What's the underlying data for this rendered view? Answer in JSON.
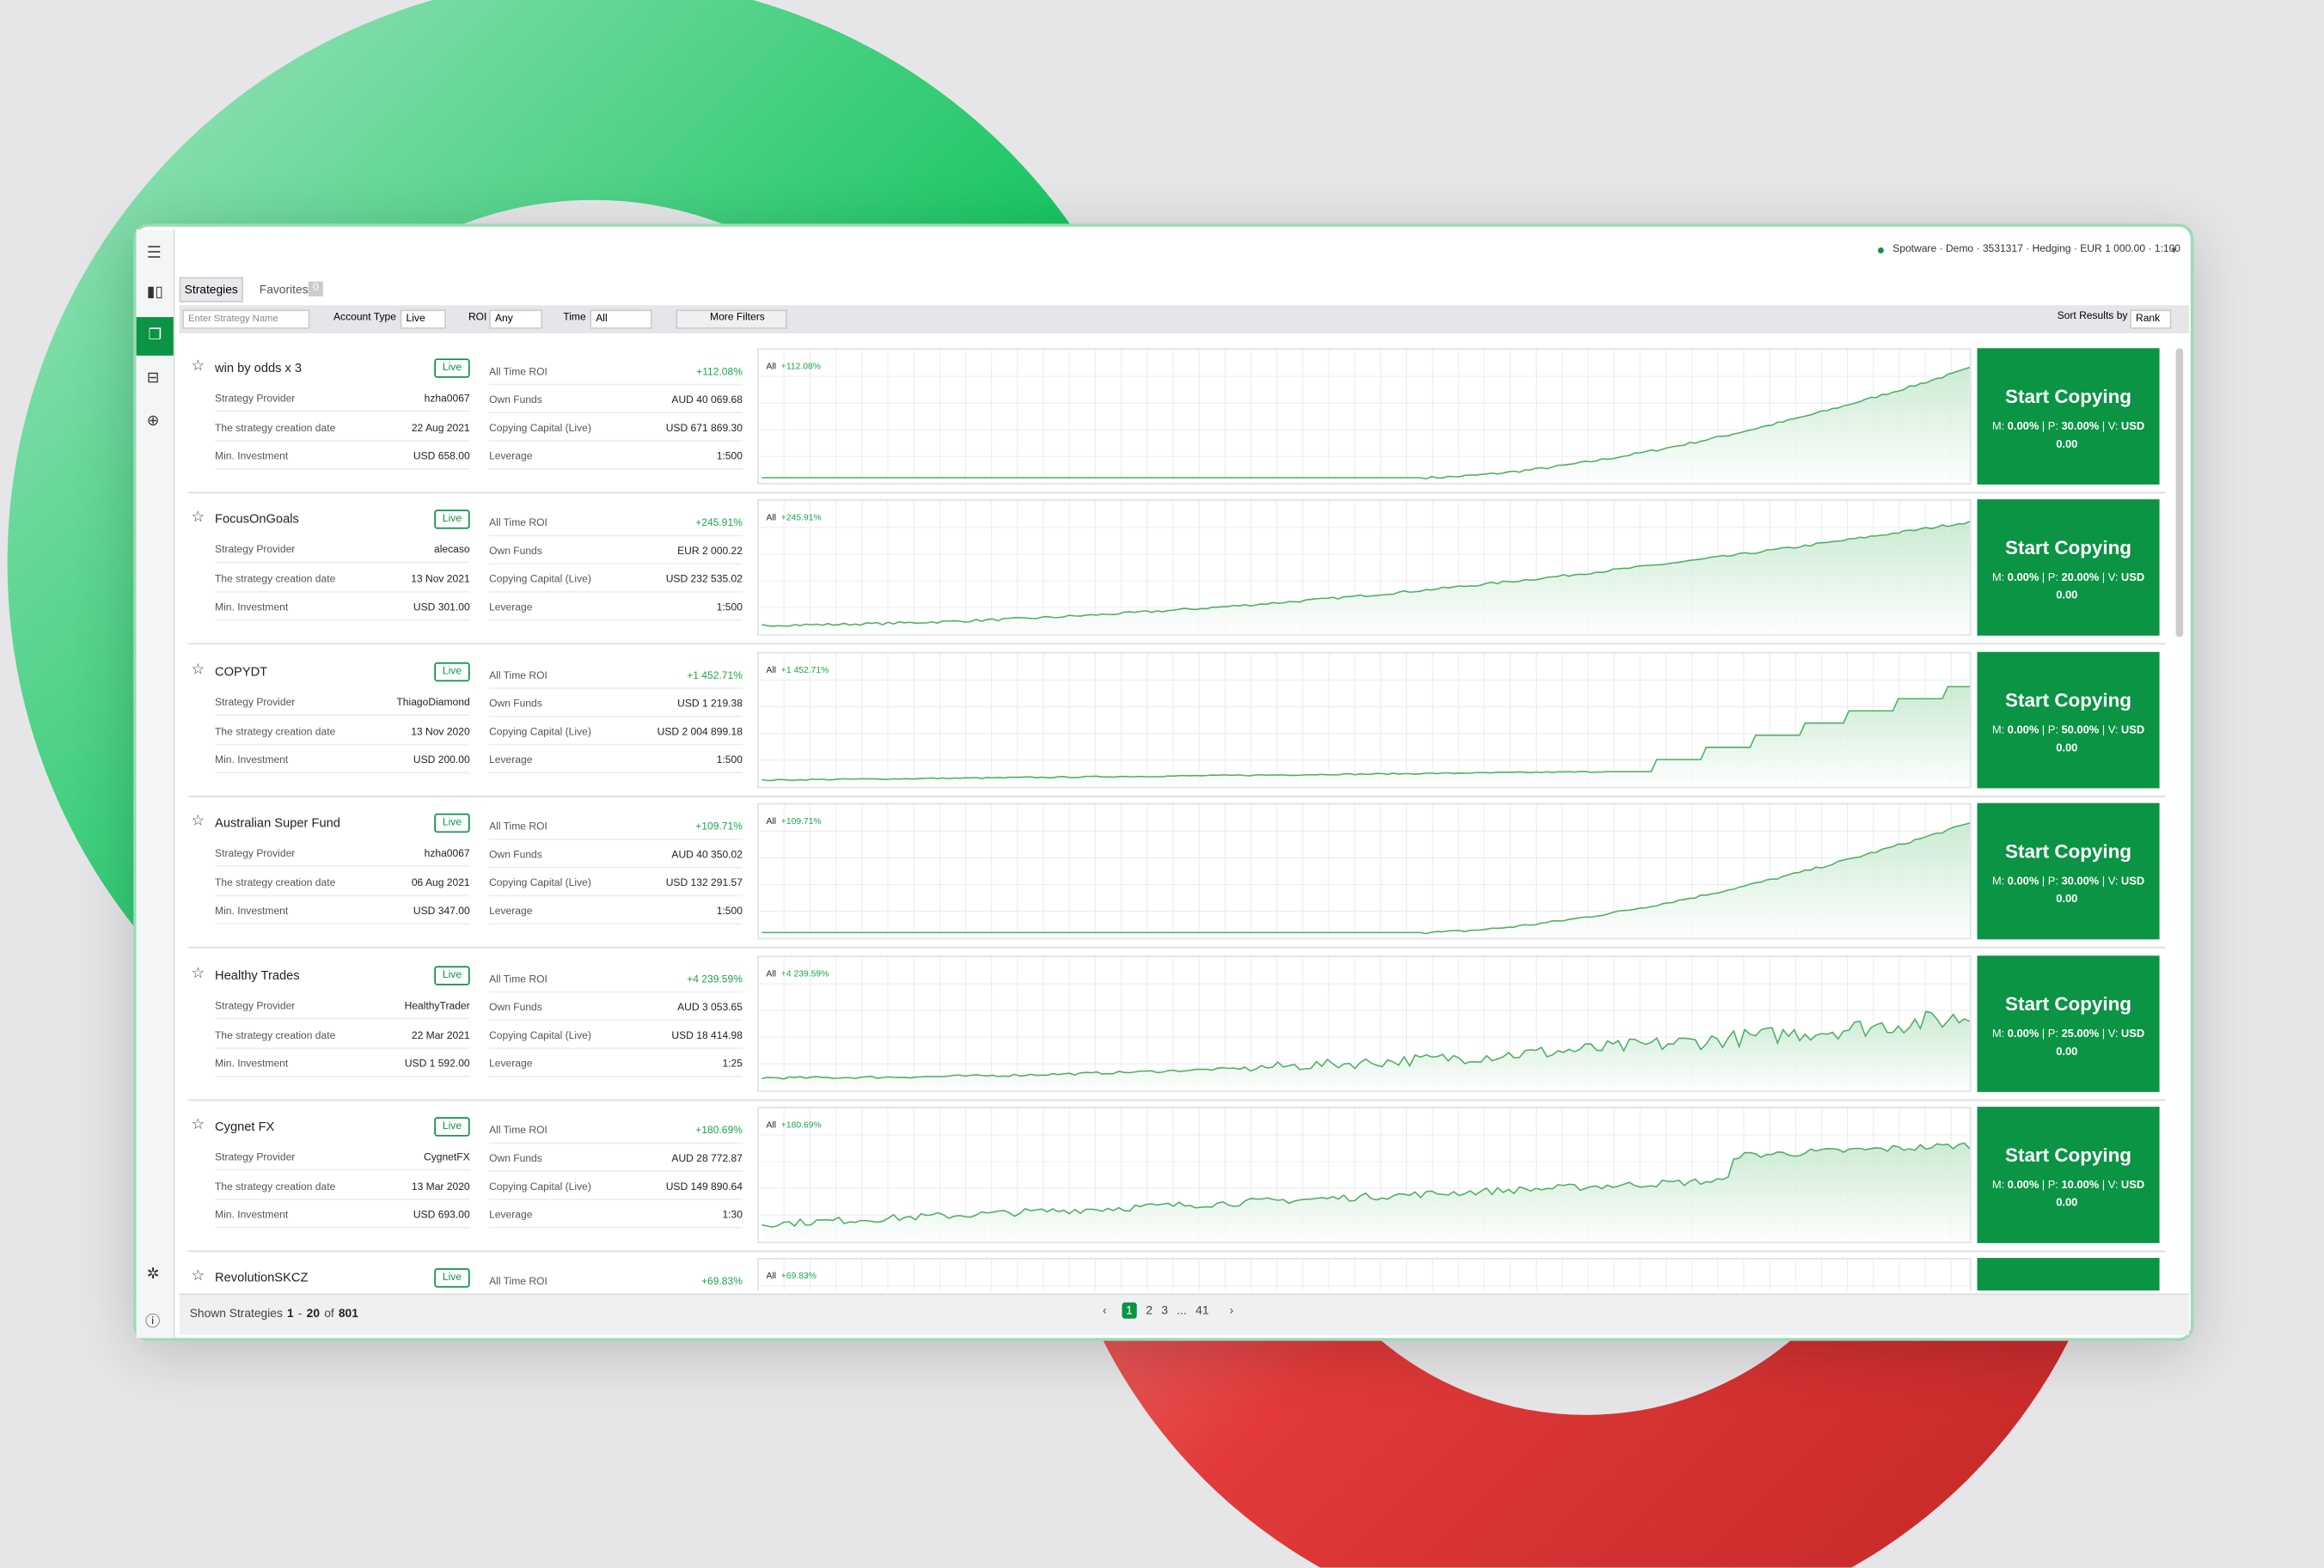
{
  "topbar": {
    "account": "Spotware · Demo · 3531317 · Hedging · EUR 1 000.00 · 1:100"
  },
  "tabs": {
    "strategies": "Strategies",
    "favorites": "Favorites",
    "favorites_count": "0"
  },
  "filters": {
    "search_placeholder": "Enter Strategy Name",
    "account_type_label": "Account Type",
    "account_type": "Live",
    "roi_label": "ROI",
    "roi": "Any",
    "time_label": "Time",
    "time": "All",
    "more": "More Filters",
    "sort_label": "Sort Results by",
    "sort": "Rank"
  },
  "labels": {
    "provider": "Strategy Provider",
    "date": "The strategy creation date",
    "min": "Min. Investment",
    "roi": "All Time ROI",
    "funds": "Own Funds",
    "capital": "Copying Capital (Live)",
    "leverage": "Leverage",
    "chart": "All",
    "button": "Start Copying",
    "m": "M:",
    "p": "| P:",
    "v": "| V:"
  },
  "strategies": [
    {
      "name": "win by odds x 3",
      "badge": "Live",
      "provider": "hzha0067",
      "date": "22 Aug 2021",
      "min": "USD 658.00",
      "roi": "+112.08%",
      "funds": "AUD 40 069.68",
      "capital": "USD 671 869.30",
      "leverage": "1:500",
      "m": "0.00%",
      "p": "30.00%",
      "v": "USD 0.00"
    },
    {
      "name": "FocusOnGoals",
      "badge": "Live",
      "provider": "alecaso",
      "date": "13 Nov 2021",
      "min": "USD 301.00",
      "roi": "+245.91%",
      "funds": "EUR 2 000.22",
      "capital": "USD 232 535.02",
      "leverage": "1:500",
      "m": "0.00%",
      "p": "20.00%",
      "v": "USD 0.00"
    },
    {
      "name": "COPYDT",
      "badge": "Live",
      "provider": "ThiagoDiamond",
      "date": "13 Nov 2020",
      "min": "USD 200.00",
      "roi": "+1 452.71%",
      "funds": "USD 1 219.38",
      "capital": "USD 2 004 899.18",
      "leverage": "1:500",
      "m": "0.00%",
      "p": "50.00%",
      "v": "USD 0.00"
    },
    {
      "name": "Australian Super Fund",
      "badge": "Live",
      "provider": "hzha0067",
      "date": "06 Aug 2021",
      "min": "USD 347.00",
      "roi": "+109.71%",
      "funds": "AUD 40 350.02",
      "capital": "USD 132 291.57",
      "leverage": "1:500",
      "m": "0.00%",
      "p": "30.00%",
      "v": "USD 0.00"
    },
    {
      "name": "Healthy Trades",
      "badge": "Live",
      "provider": "HealthyTrader",
      "date": "22 Mar 2021",
      "min": "USD 1 592.00",
      "roi": "+4 239.59%",
      "funds": "AUD 3 053.65",
      "capital": "USD 18 414.98",
      "leverage": "1:25",
      "m": "0.00%",
      "p": "25.00%",
      "v": "USD 0.00"
    },
    {
      "name": "Cygnet FX",
      "badge": "Live",
      "provider": "CygnetFX",
      "date": "13 Mar 2020",
      "min": "USD 693.00",
      "roi": "+180.69%",
      "funds": "AUD 28 772.87",
      "capital": "USD 149 890.64",
      "leverage": "1:30",
      "m": "0.00%",
      "p": "10.00%",
      "v": "USD 0.00"
    },
    {
      "name": "RevolutionSKCZ",
      "badge": "Live",
      "roi": "+69.83%"
    }
  ],
  "footer": {
    "shown": "Shown Strategies",
    "from": "1",
    "dash": "-",
    "to": "20",
    "of": "of",
    "total": "801"
  },
  "pagination": [
    "1",
    "2",
    "3",
    "...",
    "41"
  ]
}
